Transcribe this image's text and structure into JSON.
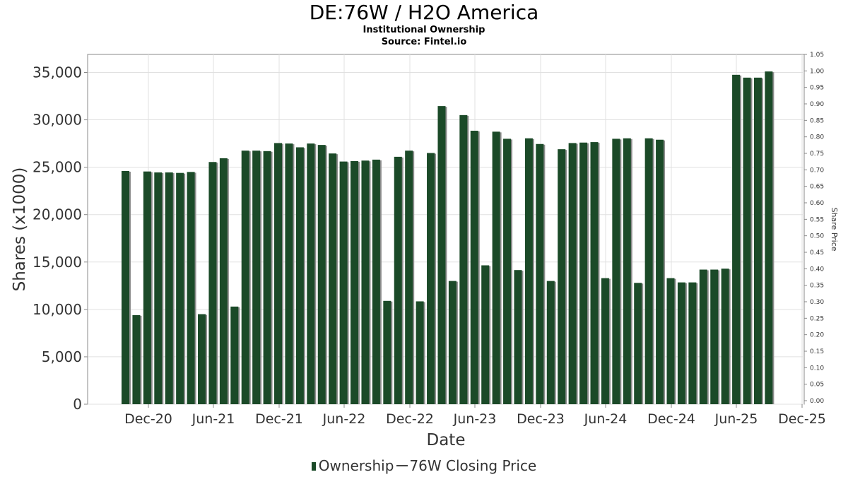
{
  "title": "DE:76W / H2O America",
  "subtitle": "Institutional Ownership",
  "source": "Source: Fintel.io",
  "legend": {
    "ownership_label": "Ownership",
    "price_label": "76W Closing Price"
  },
  "colors": {
    "bar": "#1b4a28",
    "bar_shadow": "#8e8e8e",
    "grid": "#e0e0e0",
    "axis": "#888888"
  },
  "chart_data": {
    "type": "bar",
    "title": "DE:76W / H2O America",
    "subtitle": "Institutional Ownership",
    "xlabel": "Date",
    "ylabel": "Shares (x1000)",
    "y2label": "Share Price",
    "x_ticks": [
      "Dec-20",
      "Jun-21",
      "Dec-21",
      "Jun-22",
      "Dec-22",
      "Jun-23",
      "Dec-23",
      "Jun-24",
      "Dec-24",
      "Jun-25",
      "Dec-25"
    ],
    "y_ticks": [
      "0",
      "5,000",
      "10,000",
      "15,000",
      "20,000",
      "25,000",
      "30,000",
      "35,000"
    ],
    "y2_ticks": [
      "0.00",
      "0.05",
      "0.10",
      "0.15",
      "0.20",
      "0.25",
      "0.30",
      "0.35",
      "0.40",
      "0.45",
      "0.50",
      "0.55",
      "0.60",
      "0.65",
      "0.70",
      "0.75",
      "0.80",
      "0.85",
      "0.90",
      "0.95",
      "1.00",
      "1.05"
    ],
    "ylim": [
      0,
      35000
    ],
    "y2lim": [
      0,
      1.05
    ],
    "grid": true,
    "legend_position": "bottom",
    "series": [
      {
        "name": "Ownership",
        "values": [
          24600,
          9400,
          24550,
          24450,
          24450,
          24400,
          24500,
          9500,
          25550,
          25950,
          10300,
          26750,
          26750,
          26700,
          27550,
          27500,
          27100,
          27500,
          27350,
          26450,
          25600,
          25650,
          25700,
          25800,
          10900,
          26100,
          26750,
          10850,
          26500,
          31450,
          13000,
          30500,
          28850,
          14650,
          28750,
          28000,
          14150,
          28050,
          27450,
          13000,
          26900,
          27550,
          27600,
          27650,
          13300,
          28000,
          28050,
          12800,
          28050,
          27900,
          13300,
          12850,
          12850,
          14200,
          14200,
          14300,
          34750,
          34450,
          34450,
          35100
        ]
      }
    ]
  }
}
